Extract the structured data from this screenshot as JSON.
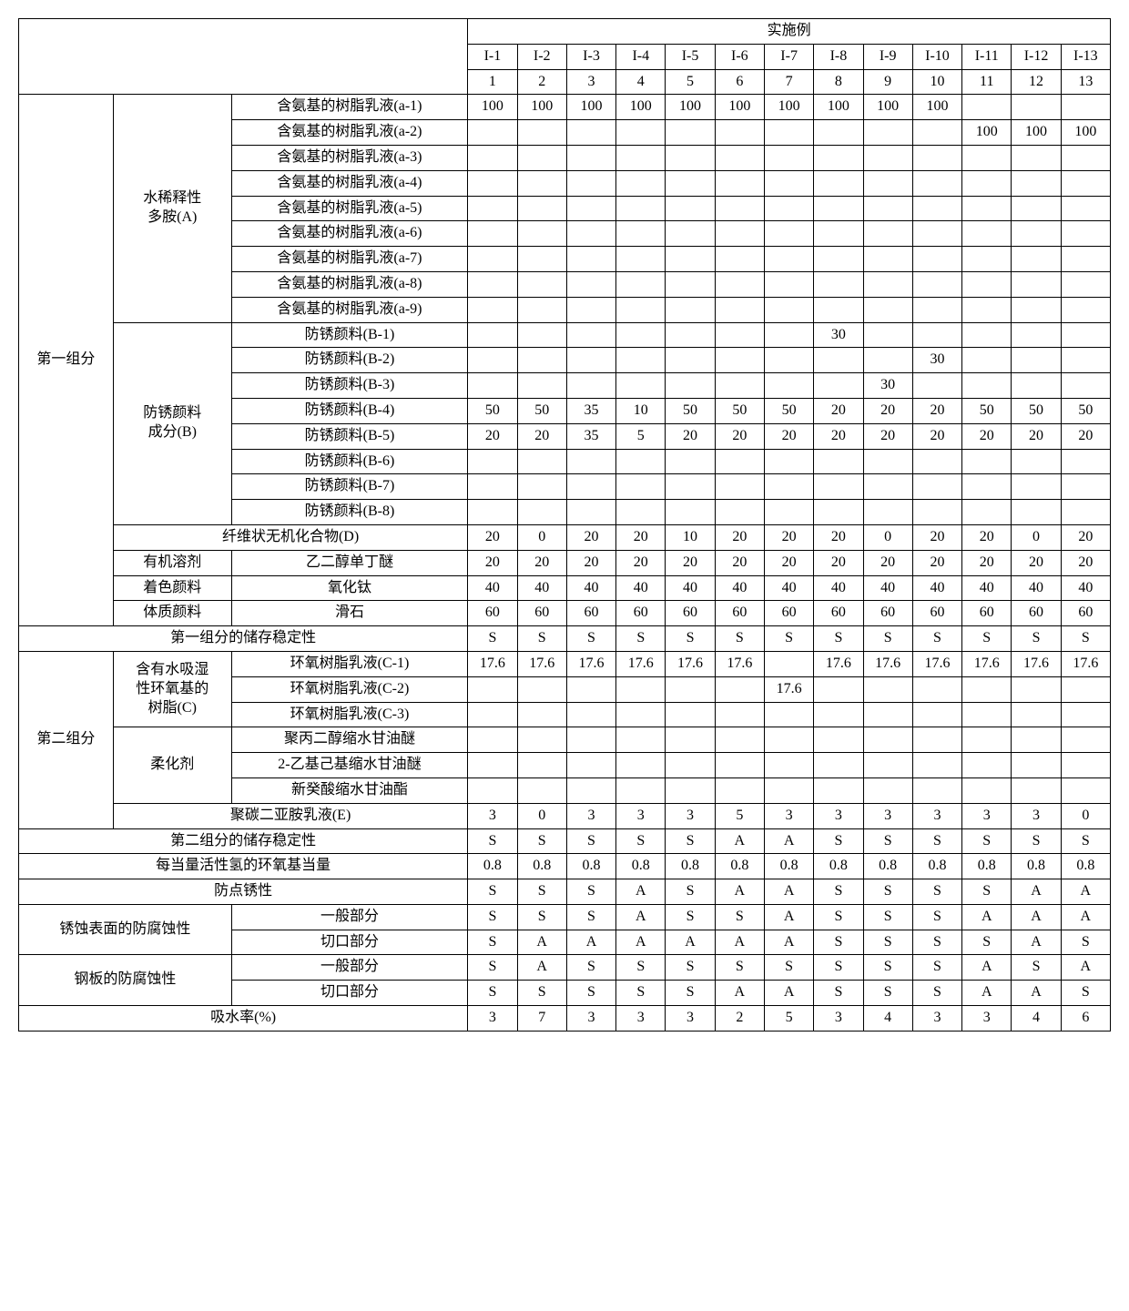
{
  "style": {
    "font_family": "SimSun",
    "cell_fontsize": 16,
    "border_color": "#000000",
    "background": "#ffffff",
    "text_color": "#000000"
  },
  "hdr": {
    "shishili": "实施例",
    "codes": [
      "I-1",
      "I-2",
      "I-3",
      "I-4",
      "I-5",
      "I-6",
      "I-7",
      "I-8",
      "I-9",
      "I-10",
      "I-11",
      "I-12",
      "I-13"
    ],
    "nums": [
      "1",
      "2",
      "3",
      "4",
      "5",
      "6",
      "7",
      "8",
      "9",
      "10",
      "11",
      "12",
      "13"
    ]
  },
  "g1": {
    "name": "第一组分"
  },
  "A": {
    "name": "水稀释性\n多胺(A)",
    "rows": [
      "含氨基的树脂乳液(a-1)",
      "含氨基的树脂乳液(a-2)",
      "含氨基的树脂乳液(a-3)",
      "含氨基的树脂乳液(a-4)",
      "含氨基的树脂乳液(a-5)",
      "含氨基的树脂乳液(a-6)",
      "含氨基的树脂乳液(a-7)",
      "含氨基的树脂乳液(a-8)",
      "含氨基的树脂乳液(a-9)"
    ],
    "data": [
      [
        "100",
        "100",
        "100",
        "100",
        "100",
        "100",
        "100",
        "100",
        "100",
        "100",
        "",
        "",
        ""
      ],
      [
        "",
        "",
        "",
        "",
        "",
        "",
        "",
        "",
        "",
        "",
        "100",
        "100",
        "100"
      ],
      [
        "",
        "",
        "",
        "",
        "",
        "",
        "",
        "",
        "",
        "",
        "",
        "",
        ""
      ],
      [
        "",
        "",
        "",
        "",
        "",
        "",
        "",
        "",
        "",
        "",
        "",
        "",
        ""
      ],
      [
        "",
        "",
        "",
        "",
        "",
        "",
        "",
        "",
        "",
        "",
        "",
        "",
        ""
      ],
      [
        "",
        "",
        "",
        "",
        "",
        "",
        "",
        "",
        "",
        "",
        "",
        "",
        ""
      ],
      [
        "",
        "",
        "",
        "",
        "",
        "",
        "",
        "",
        "",
        "",
        "",
        "",
        ""
      ],
      [
        "",
        "",
        "",
        "",
        "",
        "",
        "",
        "",
        "",
        "",
        "",
        "",
        ""
      ],
      [
        "",
        "",
        "",
        "",
        "",
        "",
        "",
        "",
        "",
        "",
        "",
        "",
        ""
      ]
    ]
  },
  "B": {
    "name": "防锈颜料\n成分(B)",
    "rows": [
      "防锈颜料(B-1)",
      "防锈颜料(B-2)",
      "防锈颜料(B-3)",
      "防锈颜料(B-4)",
      "防锈颜料(B-5)",
      "防锈颜料(B-6)",
      "防锈颜料(B-7)",
      "防锈颜料(B-8)"
    ],
    "data": [
      [
        "",
        "",
        "",
        "",
        "",
        "",
        "",
        "30",
        "",
        "",
        "",
        "",
        ""
      ],
      [
        "",
        "",
        "",
        "",
        "",
        "",
        "",
        "",
        "",
        "30",
        "",
        "",
        ""
      ],
      [
        "",
        "",
        "",
        "",
        "",
        "",
        "",
        "",
        "30",
        "",
        "",
        "",
        ""
      ],
      [
        "50",
        "50",
        "35",
        "10",
        "50",
        "50",
        "50",
        "20",
        "20",
        "20",
        "50",
        "50",
        "50"
      ],
      [
        "20",
        "20",
        "35",
        "5",
        "20",
        "20",
        "20",
        "20",
        "20",
        "20",
        "20",
        "20",
        "20"
      ],
      [
        "",
        "",
        "",
        "",
        "",
        "",
        "",
        "",
        "",
        "",
        "",
        "",
        ""
      ],
      [
        "",
        "",
        "",
        "",
        "",
        "",
        "",
        "",
        "",
        "",
        "",
        "",
        ""
      ],
      [
        "",
        "",
        "",
        "",
        "",
        "",
        "",
        "",
        "",
        "",
        "",
        "",
        ""
      ]
    ]
  },
  "D": {
    "label": "纤维状无机化合物(D)",
    "data": [
      "20",
      "0",
      "20",
      "20",
      "10",
      "20",
      "20",
      "20",
      "0",
      "20",
      "20",
      "0",
      "20"
    ]
  },
  "solv": {
    "grp": "有机溶剂",
    "label": "乙二醇单丁醚",
    "data": [
      "20",
      "20",
      "20",
      "20",
      "20",
      "20",
      "20",
      "20",
      "20",
      "20",
      "20",
      "20",
      "20"
    ]
  },
  "pig": {
    "grp": "着色颜料",
    "label": "氧化钛",
    "data": [
      "40",
      "40",
      "40",
      "40",
      "40",
      "40",
      "40",
      "40",
      "40",
      "40",
      "40",
      "40",
      "40"
    ]
  },
  "ext": {
    "grp": "体质颜料",
    "label": "滑石",
    "data": [
      "60",
      "60",
      "60",
      "60",
      "60",
      "60",
      "60",
      "60",
      "60",
      "60",
      "60",
      "60",
      "60"
    ]
  },
  "g1stab": {
    "label": "第一组分的储存稳定性",
    "data": [
      "S",
      "S",
      "S",
      "S",
      "S",
      "S",
      "S",
      "S",
      "S",
      "S",
      "S",
      "S",
      "S"
    ]
  },
  "g2": {
    "name": "第二组分"
  },
  "C": {
    "name": "含有水吸湿\n性环氧基的\n树脂(C)",
    "rows": [
      "环氧树脂乳液(C-1)",
      "环氧树脂乳液(C-2)",
      "环氧树脂乳液(C-3)"
    ],
    "data": [
      [
        "17.6",
        "17.6",
        "17.6",
        "17.6",
        "17.6",
        "17.6",
        "",
        "17.6",
        "17.6",
        "17.6",
        "17.6",
        "17.6",
        "17.6"
      ],
      [
        "",
        "",
        "",
        "",
        "",
        "",
        "17.6",
        "",
        "",
        "",
        "",
        "",
        ""
      ],
      [
        "",
        "",
        "",
        "",
        "",
        "",
        "",
        "",
        "",
        "",
        "",
        "",
        ""
      ]
    ]
  },
  "soft": {
    "name": "柔化剂",
    "rows": [
      "聚丙二醇缩水甘油醚",
      "2-乙基己基缩水甘油醚",
      "新癸酸缩水甘油酯"
    ],
    "data": [
      [
        "",
        "",
        "",
        "",
        "",
        "",
        "",
        "",
        "",
        "",
        "",
        "",
        ""
      ],
      [
        "",
        "",
        "",
        "",
        "",
        "",
        "",
        "",
        "",
        "",
        "",
        "",
        ""
      ],
      [
        "",
        "",
        "",
        "",
        "",
        "",
        "",
        "",
        "",
        "",
        "",
        "",
        ""
      ]
    ]
  },
  "E": {
    "label": "聚碳二亚胺乳液(E)",
    "data": [
      "3",
      "0",
      "3",
      "3",
      "3",
      "5",
      "3",
      "3",
      "3",
      "3",
      "3",
      "3",
      "0"
    ]
  },
  "g2stab": {
    "label": "第二组分的储存稳定性",
    "data": [
      "S",
      "S",
      "S",
      "S",
      "S",
      "A",
      "A",
      "S",
      "S",
      "S",
      "S",
      "S",
      "S"
    ]
  },
  "eq": {
    "label": "每当量活性氢的环氧基当量",
    "data": [
      "0.8",
      "0.8",
      "0.8",
      "0.8",
      "0.8",
      "0.8",
      "0.8",
      "0.8",
      "0.8",
      "0.8",
      "0.8",
      "0.8",
      "0.8"
    ]
  },
  "spot": {
    "label": "防点锈性",
    "data": [
      "S",
      "S",
      "S",
      "A",
      "S",
      "A",
      "A",
      "S",
      "S",
      "S",
      "S",
      "A",
      "A"
    ]
  },
  "rust": {
    "name": "锈蚀表面的防腐蚀性",
    "rows": [
      "一般部分",
      "切口部分"
    ],
    "data": [
      [
        "S",
        "S",
        "S",
        "A",
        "S",
        "S",
        "A",
        "S",
        "S",
        "S",
        "A",
        "A",
        "A"
      ],
      [
        "S",
        "A",
        "A",
        "A",
        "A",
        "A",
        "A",
        "S",
        "S",
        "S",
        "S",
        "A",
        "S"
      ]
    ]
  },
  "steel": {
    "name": "钢板的防腐蚀性",
    "rows": [
      "一般部分",
      "切口部分"
    ],
    "data": [
      [
        "S",
        "A",
        "S",
        "S",
        "S",
        "S",
        "S",
        "S",
        "S",
        "S",
        "A",
        "S",
        "A"
      ],
      [
        "S",
        "S",
        "S",
        "S",
        "S",
        "A",
        "A",
        "S",
        "S",
        "S",
        "A",
        "A",
        "S"
      ]
    ]
  },
  "water": {
    "label": "吸水率(%)",
    "data": [
      "3",
      "7",
      "3",
      "3",
      "3",
      "2",
      "5",
      "3",
      "4",
      "3",
      "3",
      "4",
      "6"
    ]
  }
}
